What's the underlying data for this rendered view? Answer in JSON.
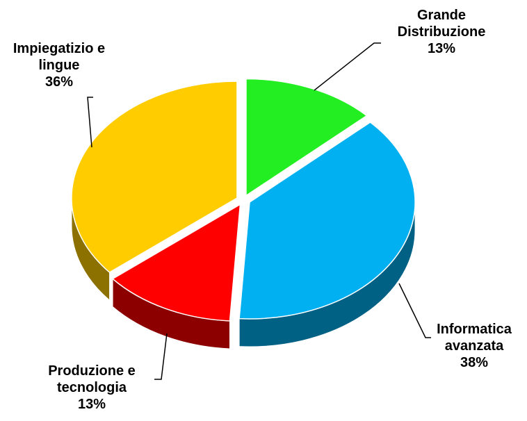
{
  "chart_data": {
    "type": "pie",
    "categories": [
      "Grande Distribuzione",
      "Informatica avanzata",
      "Produzione e tecnologia",
      "Impiegatizio e lingue"
    ],
    "values": [
      13,
      38,
      13,
      36
    ],
    "value_labels": [
      "13%",
      "38%",
      "13%",
      "36%"
    ],
    "colors": [
      "#22ee22",
      "#00b0f0",
      "#ff0000",
      "#ffcc00"
    ],
    "three_d": true,
    "exploded": true
  }
}
